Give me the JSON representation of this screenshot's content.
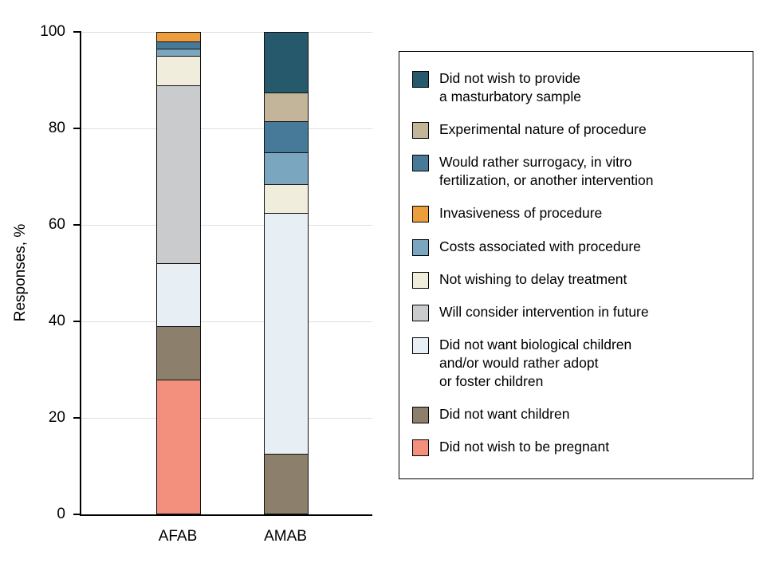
{
  "figure": {
    "y_axis_label": "Responses, %"
  },
  "chart_data": {
    "type": "bar",
    "subtype": "stacked-vertical",
    "title": "",
    "xlabel": "",
    "ylabel": "Responses, %",
    "ylim": [
      0,
      100
    ],
    "yticks": [
      0,
      20,
      40,
      60,
      80,
      100
    ],
    "categories": [
      "AFAB",
      "AMAB"
    ],
    "grid": "horizontal",
    "legend_position": "right",
    "colors": {
      "masturbatory_sample": "#26596C",
      "experimental_nature": "#C3B59A",
      "surrogacy_ivf": "#477A99",
      "invasiveness": "#EC9D3E",
      "costs": "#7BA6C0",
      "delay_treatment": "#F1EDDC",
      "consider_future": "#C9CBCD",
      "no_biological_children": "#E8EFF4",
      "no_children": "#8C7F6C",
      "not_pregnant": "#F2907D"
    },
    "legend": [
      {
        "key": "masturbatory_sample",
        "label": "Did not wish to provide\na masturbatory sample"
      },
      {
        "key": "experimental_nature",
        "label": "Experimental nature of procedure"
      },
      {
        "key": "surrogacy_ivf",
        "label": "Would rather surrogacy, in vitro\nfertilization, or another intervention"
      },
      {
        "key": "invasiveness",
        "label": "Invasiveness of procedure"
      },
      {
        "key": "costs",
        "label": "Costs associated with procedure"
      },
      {
        "key": "delay_treatment",
        "label": "Not wishing to delay treatment"
      },
      {
        "key": "consider_future",
        "label": "Will consider intervention in future"
      },
      {
        "key": "no_biological_children",
        "label": "Did not want biological children\nand/or would rather adopt\nor foster children"
      },
      {
        "key": "no_children",
        "label": "Did not want children"
      },
      {
        "key": "not_pregnant",
        "label": "Did not wish to be pregnant"
      }
    ],
    "bars": [
      {
        "id": "afab",
        "label": "AFAB",
        "segments": [
          {
            "key": "not_pregnant",
            "value": 28
          },
          {
            "key": "no_children",
            "value": 11
          },
          {
            "key": "no_biological_children",
            "value": 13
          },
          {
            "key": "consider_future",
            "value": 37
          },
          {
            "key": "delay_treatment",
            "value": 6
          },
          {
            "key": "costs",
            "value": 1.5
          },
          {
            "key": "surrogacy_ivf",
            "value": 1.5
          },
          {
            "key": "invasiveness",
            "value": 2
          }
        ]
      },
      {
        "id": "amab",
        "label": "AMAB",
        "segments": [
          {
            "key": "no_children",
            "value": 12.5
          },
          {
            "key": "no_biological_children",
            "value": 50
          },
          {
            "key": "delay_treatment",
            "value": 6
          },
          {
            "key": "costs",
            "value": 6.5
          },
          {
            "key": "surrogacy_ivf",
            "value": 6.5
          },
          {
            "key": "experimental_nature",
            "value": 6
          },
          {
            "key": "masturbatory_sample",
            "value": 12.5
          }
        ]
      }
    ]
  }
}
